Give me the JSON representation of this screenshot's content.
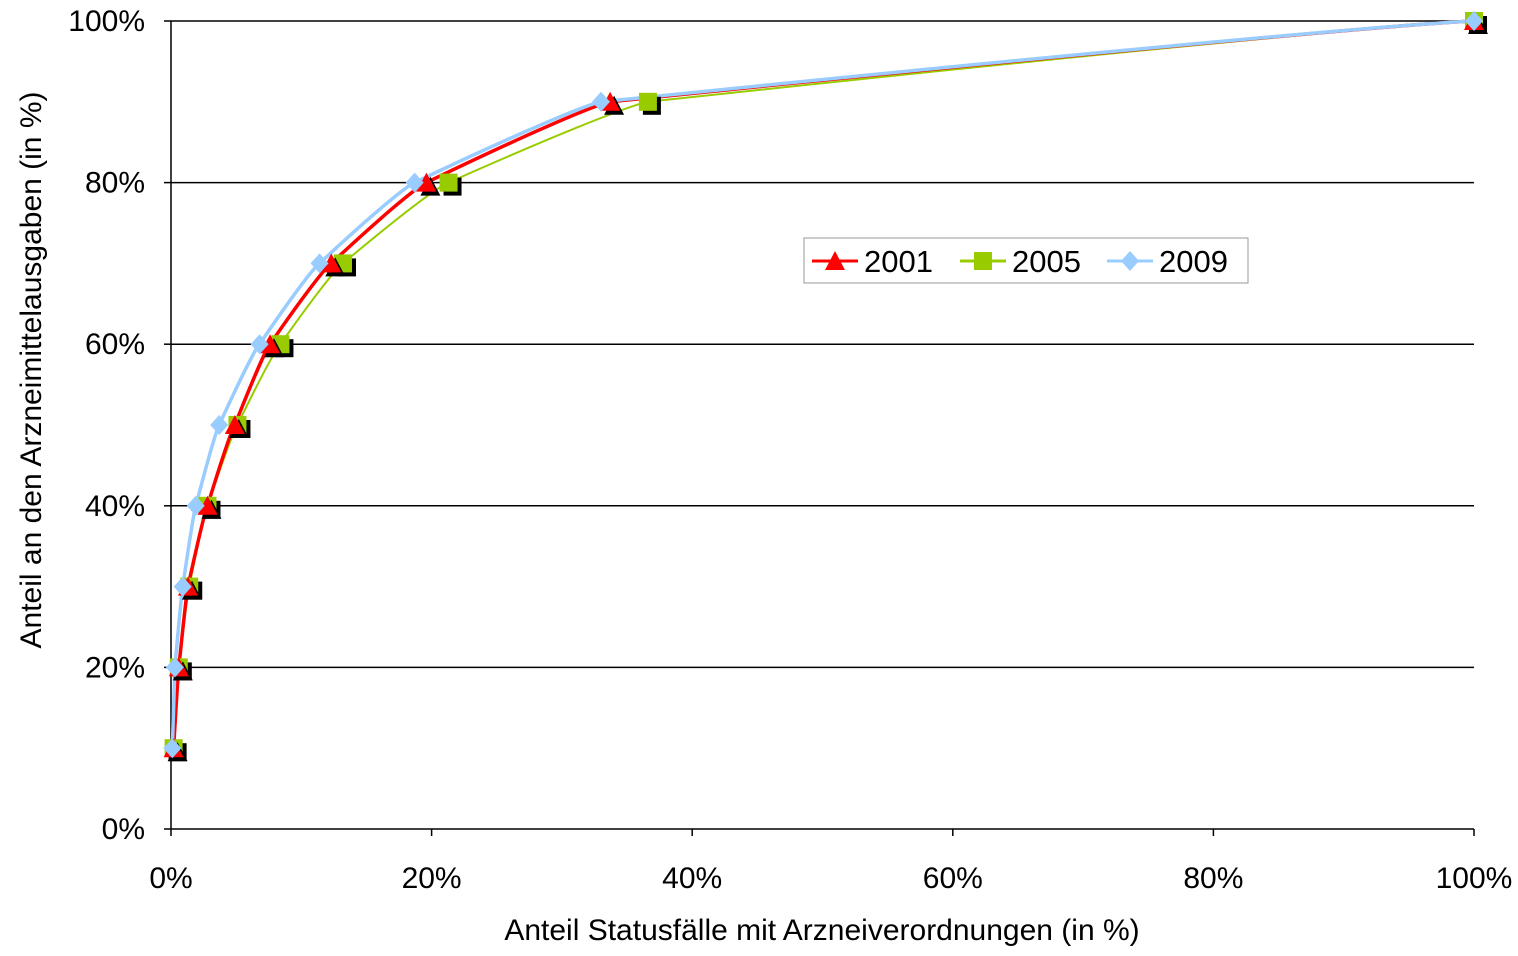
{
  "chart_data": {
    "type": "line",
    "title": "",
    "xlabel": "Anteil Statusfälle mit Arzneiverordnungen (in %)",
    "ylabel": "Anteil an den Arzneimittelausgaben (in %)",
    "xlim": [
      0,
      100
    ],
    "ylim": [
      0,
      100
    ],
    "x_ticks": [
      "0%",
      "20%",
      "40%",
      "60%",
      "80%",
      "100%"
    ],
    "y_ticks": [
      "0%",
      "20%",
      "40%",
      "60%",
      "80%",
      "100%"
    ],
    "grid": "horizontal",
    "legend_position": "center-right",
    "series": [
      {
        "name": "2001",
        "color": "#ff0000",
        "marker": "triangle",
        "x": [
          0.2,
          0.6,
          1.3,
          2.8,
          4.9,
          7.6,
          12.3,
          19.6,
          33.7,
          100
        ],
        "y": [
          10,
          20,
          30,
          40,
          50,
          60,
          70,
          80,
          90,
          100
        ]
      },
      {
        "name": "2005",
        "color": "#99cc00",
        "marker": "square",
        "x": [
          0.2,
          0.6,
          1.4,
          2.8,
          5.1,
          8.4,
          13.2,
          21.3,
          36.6,
          100
        ],
        "y": [
          10,
          20,
          30,
          40,
          50,
          60,
          70,
          80,
          90,
          100
        ]
      },
      {
        "name": "2009",
        "color": "#99ccff",
        "marker": "diamond",
        "x": [
          0.1,
          0.3,
          0.9,
          1.9,
          3.7,
          6.8,
          11.4,
          18.7,
          33.0,
          100
        ],
        "y": [
          10,
          20,
          30,
          40,
          50,
          60,
          70,
          80,
          90,
          100
        ]
      }
    ]
  }
}
